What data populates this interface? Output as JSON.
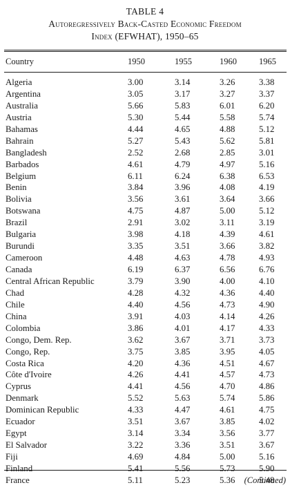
{
  "table": {
    "number": "TABLE 4",
    "title_line1": "Autoregressively Back-Casted Economic Freedom",
    "title_line2": "Index (EFWHAT), 1950–65",
    "headers": [
      "Country",
      "1950",
      "1955",
      "1960",
      "1965"
    ],
    "rows": [
      [
        "Algeria",
        "3.00",
        "3.14",
        "3.26",
        "3.38"
      ],
      [
        "Argentina",
        "3.05",
        "3.17",
        "3.27",
        "3.37"
      ],
      [
        "Australia",
        "5.66",
        "5.83",
        "6.01",
        "6.20"
      ],
      [
        "Austria",
        "5.30",
        "5.44",
        "5.58",
        "5.74"
      ],
      [
        "Bahamas",
        "4.44",
        "4.65",
        "4.88",
        "5.12"
      ],
      [
        "Bahrain",
        "5.27",
        "5.43",
        "5.62",
        "5.81"
      ],
      [
        "Bangladesh",
        "2.52",
        "2.68",
        "2.85",
        "3.01"
      ],
      [
        "Barbados",
        "4.61",
        "4.79",
        "4.97",
        "5.16"
      ],
      [
        "Belgium",
        "6.11",
        "6.24",
        "6.38",
        "6.53"
      ],
      [
        "Benin",
        "3.84",
        "3.96",
        "4.08",
        "4.19"
      ],
      [
        "Bolivia",
        "3.56",
        "3.61",
        "3.64",
        "3.66"
      ],
      [
        "Botswana",
        "4.75",
        "4.87",
        "5.00",
        "5.12"
      ],
      [
        "Brazil",
        "2.91",
        "3.02",
        "3.11",
        "3.19"
      ],
      [
        "Bulgaria",
        "3.98",
        "4.18",
        "4.39",
        "4.61"
      ],
      [
        "Burundi",
        "3.35",
        "3.51",
        "3.66",
        "3.82"
      ],
      [
        "Cameroon",
        "4.48",
        "4.63",
        "4.78",
        "4.93"
      ],
      [
        "Canada",
        "6.19",
        "6.37",
        "6.56",
        "6.76"
      ],
      [
        "Central African Republic",
        "3.79",
        "3.90",
        "4.00",
        "4.10"
      ],
      [
        "Chad",
        "4.28",
        "4.32",
        "4.36",
        "4.40"
      ],
      [
        "Chile",
        "4.40",
        "4.56",
        "4.73",
        "4.90"
      ],
      [
        "China",
        "3.91",
        "4.03",
        "4.14",
        "4.26"
      ],
      [
        "Colombia",
        "3.86",
        "4.01",
        "4.17",
        "4.33"
      ],
      [
        "Congo, Dem. Rep.",
        "3.62",
        "3.67",
        "3.71",
        "3.73"
      ],
      [
        "Congo, Rep.",
        "3.75",
        "3.85",
        "3.95",
        "4.05"
      ],
      [
        "Costa Rica",
        "4.20",
        "4.36",
        "4.51",
        "4.67"
      ],
      [
        "Côte d'Ivoire",
        "4.26",
        "4.41",
        "4.57",
        "4.73"
      ],
      [
        "Cyprus",
        "4.41",
        "4.56",
        "4.70",
        "4.86"
      ],
      [
        "Denmark",
        "5.52",
        "5.63",
        "5.74",
        "5.86"
      ],
      [
        "Dominican Republic",
        "4.33",
        "4.47",
        "4.61",
        "4.75"
      ],
      [
        "Ecuador",
        "3.51",
        "3.67",
        "3.85",
        "4.02"
      ],
      [
        "Egypt",
        "3.14",
        "3.34",
        "3.56",
        "3.77"
      ],
      [
        "El Salvador",
        "3.22",
        "3.36",
        "3.51",
        "3.67"
      ],
      [
        "Fiji",
        "4.69",
        "4.84",
        "5.00",
        "5.16"
      ],
      [
        "Finland",
        "5.41",
        "5.56",
        "5.73",
        "5.90"
      ],
      [
        "France",
        "5.11",
        "5.23",
        "5.36",
        "5.48"
      ]
    ],
    "continued": "(Continued)"
  }
}
